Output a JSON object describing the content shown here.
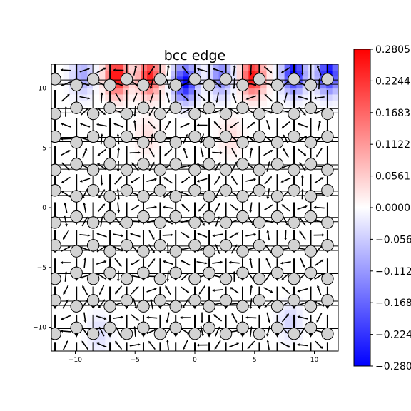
{
  "chart_data": {
    "type": "heatmap",
    "title": "bcc edge",
    "xlabel": "",
    "ylabel": "",
    "xlim": [
      -12,
      12
    ],
    "ylim": [
      -12,
      12
    ],
    "x_ticks": [
      -10,
      -5,
      0,
      5,
      10
    ],
    "y_ticks": [
      -10,
      -5,
      0,
      5,
      10
    ],
    "x_tick_labels": [
      "−10",
      "−5",
      "0",
      "5",
      "10"
    ],
    "y_tick_labels": [
      "−10",
      "−5",
      "0",
      "5",
      "10"
    ],
    "colormap": "bwr",
    "color_range": [
      -0.2805,
      0.2805
    ],
    "colorbar_ticks": [
      0.2805,
      0.2244,
      0.1683,
      0.1122,
      0.0561,
      0.0,
      -0.0561,
      -0.1122,
      -0.1683,
      -0.2244,
      -0.2805
    ],
    "colorbar_tick_labels": [
      "0.2805",
      "0.2244",
      "0.1683",
      "0.1122",
      "0.0561",
      "0.0000",
      "−0.0561",
      "−0.1122",
      "−0.1683",
      "−0.2244",
      "−0.2805"
    ],
    "color_hotspots": [
      {
        "x": -6.5,
        "y": 11.0,
        "value": 0.28
      },
      {
        "x": -3.8,
        "y": 11.0,
        "value": 0.25
      },
      {
        "x": -0.8,
        "y": 10.5,
        "value": -0.28
      },
      {
        "x": 2.2,
        "y": 11.0,
        "value": -0.15
      },
      {
        "x": 4.9,
        "y": 11.0,
        "value": 0.27
      },
      {
        "x": 8.3,
        "y": 11.2,
        "value": -0.28
      },
      {
        "x": 11.2,
        "y": 11.2,
        "value": -0.28
      },
      {
        "x": -9.4,
        "y": 11.0,
        "value": -0.1
      },
      {
        "x": -4.0,
        "y": 6.0,
        "value": 0.04
      },
      {
        "x": 3.0,
        "y": 6.0,
        "value": 0.04
      },
      {
        "x": 8.0,
        "y": -9.5,
        "value": -0.05
      },
      {
        "x": -8.0,
        "y": -10.5,
        "value": -0.04
      }
    ],
    "atom_columns_x": [
      -11.7,
      -9.9,
      -8.5,
      -7.1,
      -5.7,
      -4.3,
      -2.9,
      -1.6,
      0.0,
      1.2,
      2.6,
      4.0,
      5.4,
      6.9,
      8.3,
      9.7,
      11.1
    ],
    "atom_rows_y": [
      10.5,
      8.1,
      5.7,
      3.4,
      1.2,
      -1.0,
      -3.4,
      -5.7,
      -8.0,
      -10.3
    ],
    "colors": {
      "atom_fill": "#d3d3d3",
      "atom_edge": "#000000",
      "arrow": "#000000",
      "frame": "#000000"
    }
  }
}
